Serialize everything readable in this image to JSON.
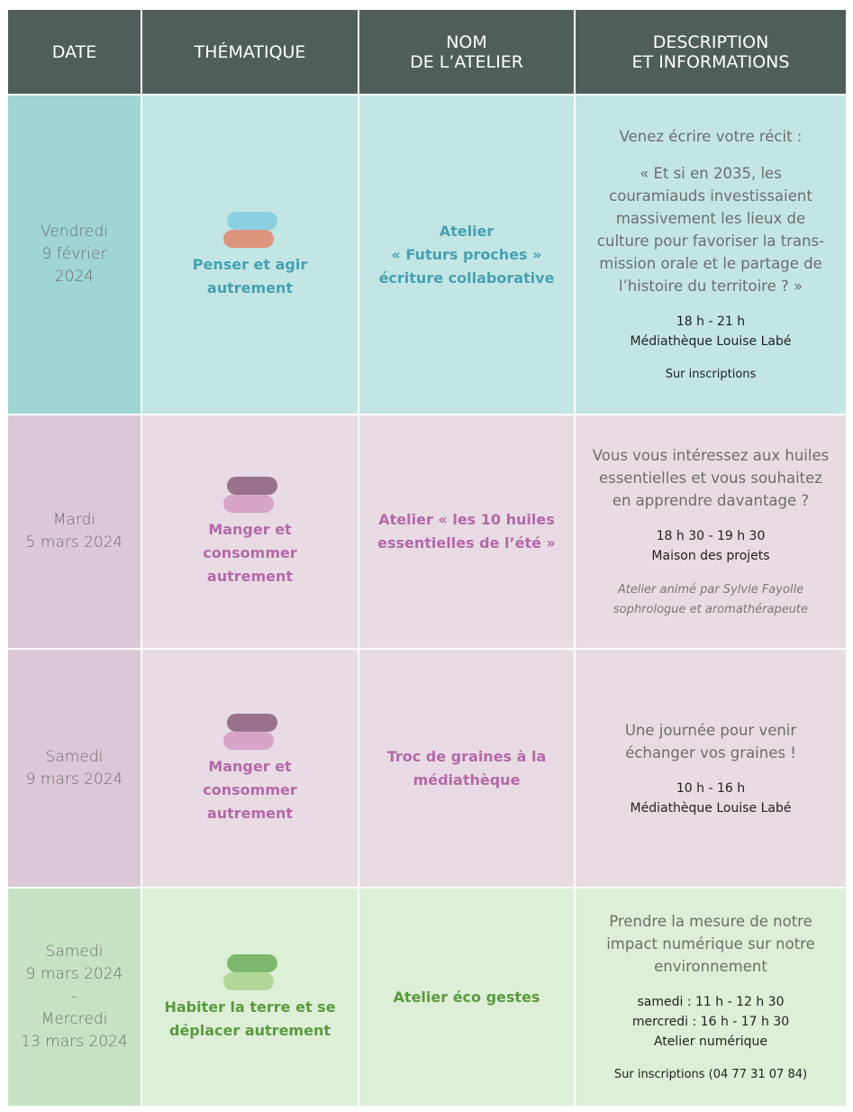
{
  "header": {
    "columns": [
      [
        "DATE"
      ],
      [
        "THÉMATIQUE"
      ],
      [
        "NOM",
        "DE L’ATELIER"
      ],
      [
        "DESCRIPTION",
        "ET INFORMATIONS"
      ]
    ]
  },
  "rows": [
    {
      "date": [
        "Vendredi",
        "9 février",
        "2024"
      ],
      "theme": [
        "Penser et agir",
        "autrement"
      ],
      "workshop": [
        "Atelier",
        "« Futurs proches »",
        "écriture collaborative"
      ],
      "description": [
        [
          "Venez écrire votre récit :"
        ],
        [
          "« Et si en 2035, les",
          "couramiauds investissaient",
          "massivement les lieux de",
          "culture pour favoriser la trans-",
          "mission orale et le partage de",
          "l’histoire du territoire ? »"
        ],
        [
          "18 h - 21 h",
          "Médiathèque Louise Labé"
        ],
        [
          "Sur inscriptions"
        ]
      ]
    },
    {
      "date": [
        "Mardi",
        "5 mars 2024"
      ],
      "theme": [
        "Manger et",
        "consommer",
        "autrement"
      ],
      "workshop": [
        "Atelier « les 10 huiles",
        "essentielles de l’été »"
      ],
      "description": [
        [
          "Vous vous intéressez aux huiles",
          "essentielles et vous souhaitez",
          "en apprendre davantage ?"
        ],
        [
          "18 h 30 - 19 h 30",
          "Maison des projets"
        ],
        [
          "Atelier animé par Sylvie Fayolle",
          "sophrologue et aromathérapeute"
        ]
      ]
    },
    {
      "date": [
        "Samedi",
        "9 mars 2024"
      ],
      "theme": [
        "Manger et",
        "consommer",
        "autrement"
      ],
      "workshop": [
        "Troc de graines à la",
        "médiathèque"
      ],
      "description": [
        [
          "Une journée pour venir",
          "échanger vos graines !"
        ],
        [
          "10 h - 16 h",
          "Médiathèque Louise Labé"
        ]
      ]
    },
    {
      "date": [
        "Samedi",
        "9 mars 2024",
        "-",
        "Mercredi",
        "13 mars 2024"
      ],
      "theme": [
        "Habiter  la terre et se",
        "déplacer  autrement"
      ],
      "workshop": [
        "Atelier éco gestes"
      ],
      "description": [
        [
          "Prendre la mesure de notre",
          "impact numérique sur notre",
          "environnement"
        ],
        [
          "samedi : 11 h - 12 h 30",
          "mercredi : 16 h - 17 h 30",
          "Atelier numérique"
        ],
        [
          "Sur inscriptions (04 77 31 07 84)"
        ]
      ]
    }
  ]
}
